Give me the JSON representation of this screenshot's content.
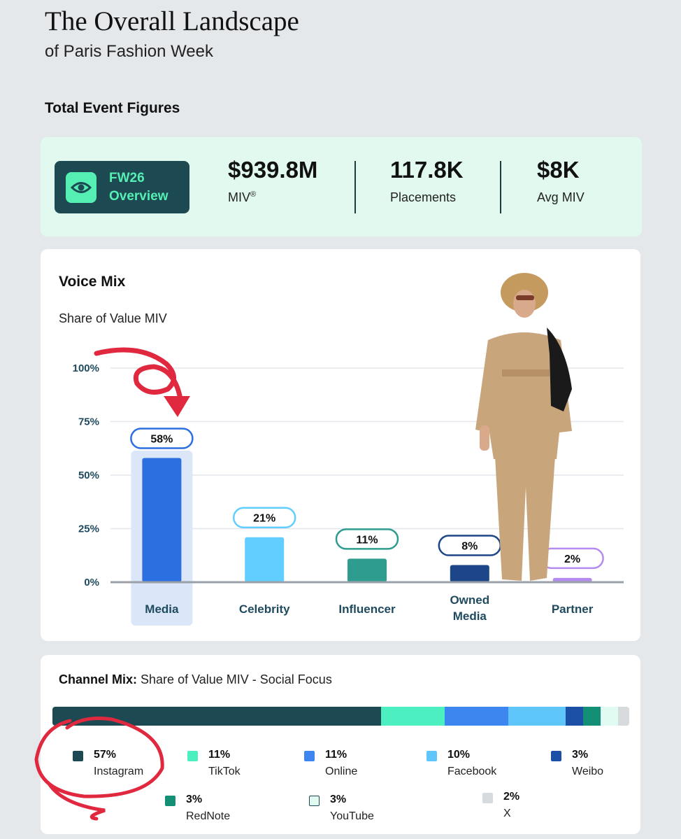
{
  "header": {
    "title": "The Overall Landscape",
    "subtitle": "of Paris Fashion Week",
    "section_label": "Total Event Figures"
  },
  "kpis": {
    "badge_line1": "FW26",
    "badge_line2": "Overview",
    "badge_icon": "eye-icon",
    "miv_value": "$939.8M",
    "miv_label": "MIV",
    "miv_mark": "®",
    "placements_value": "117.8K",
    "placements_label": "Placements",
    "avg_value": "$8K",
    "avg_label": "Avg MIV"
  },
  "colors": {
    "dark_teal": "#1d4a52",
    "mint": "#56efb3",
    "kpi_bg": "#e2f9ef",
    "annotation_red": "#e0283f"
  },
  "voice_mix": {
    "title": "Voice Mix",
    "subtitle": "Share of Value MIV"
  },
  "chart_data": [
    {
      "type": "bar",
      "title": "Voice Mix",
      "subtitle": "Share of Value MIV",
      "categories": [
        "Media",
        "Celebrity",
        "Influencer",
        "Owned Media",
        "Partner"
      ],
      "category_lines": [
        [
          "Media"
        ],
        [
          "Celebrity"
        ],
        [
          "Influencer"
        ],
        [
          "Owned",
          "Media"
        ],
        [
          "Partner"
        ]
      ],
      "values": [
        58,
        21,
        11,
        8,
        2
      ],
      "value_labels": [
        "58%",
        "21%",
        "11%",
        "8%",
        "2%"
      ],
      "colors": [
        "#2b6fe0",
        "#62ceff",
        "#2e9d8f",
        "#1c4688",
        "#b48cf0"
      ],
      "highlight_index": 0,
      "highlight_color": "#dbe7f9",
      "yticks": [
        0,
        25,
        50,
        75,
        100
      ],
      "ytick_labels": [
        "0%",
        "25%",
        "50%",
        "75%",
        "100%"
      ],
      "ylim": [
        0,
        100
      ],
      "grid": true
    },
    {
      "type": "bar",
      "subtype": "stacked-100",
      "title": "Channel Mix:",
      "subtitle": "Share of Value MIV - Social Focus",
      "categories": [
        "Instagram",
        "TikTok",
        "Online",
        "Facebook",
        "Weibo",
        "RedNote",
        "YouTube",
        "X"
      ],
      "values": [
        57,
        11,
        11,
        10,
        3,
        3,
        3,
        2
      ],
      "value_labels": [
        "57%",
        "11%",
        "11%",
        "10%",
        "3%",
        "3%",
        "3%",
        "2%"
      ],
      "colors": [
        "#1d4a52",
        "#4cf0c0",
        "#3d86f0",
        "#5fc6fb",
        "#1c50a6",
        "#138f75",
        "#e2fbf2",
        "#d7dbde"
      ],
      "swatch_borders": [
        "",
        "",
        "",
        "",
        "",
        "",
        "#1d4a52",
        ""
      ]
    }
  ]
}
